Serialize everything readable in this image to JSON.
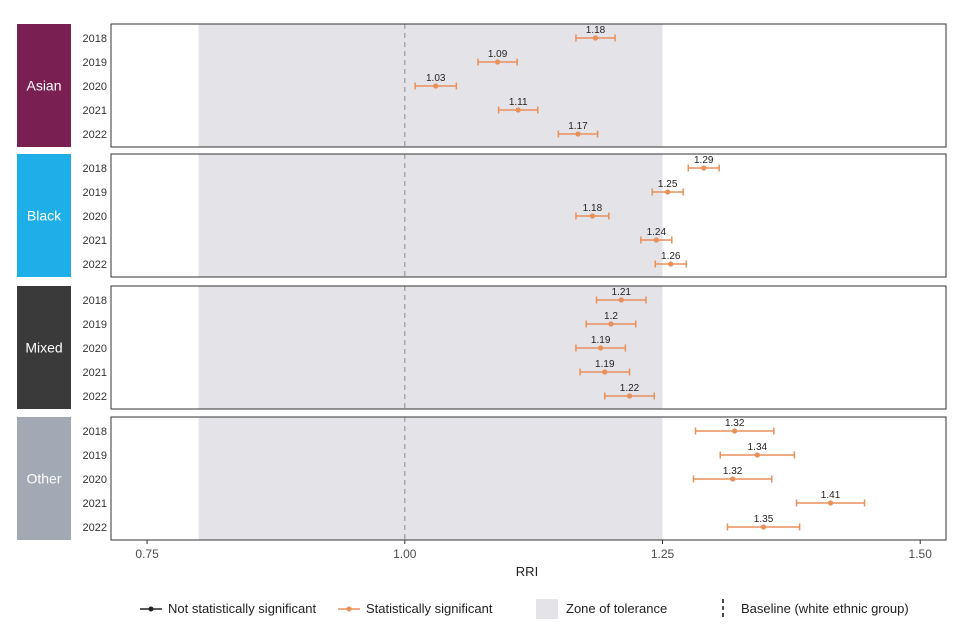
{
  "chart_data": {
    "type": "forest-plot",
    "xlabel": "RRI",
    "xlim": [
      0.715,
      1.525
    ],
    "x_ticks": [
      {
        "value": 0.75,
        "label": "0.75"
      },
      {
        "value": 1.0,
        "label": "1.00"
      },
      {
        "value": 1.25,
        "label": "1.25"
      },
      {
        "value": 1.5,
        "label": "1.50"
      }
    ],
    "baseline": 1.0,
    "tolerance_zone": [
      0.8,
      1.25
    ],
    "colors": {
      "significant": "#e8905a",
      "not_significant": "#222222",
      "tolerance_zone": "#e4e3e8",
      "baseline": "#9a9a9a"
    },
    "groups": [
      {
        "name": "Asian",
        "color": "#7a1f52",
        "points": [
          {
            "year": "2018",
            "value": 1.185,
            "low": 1.166,
            "high": 1.204,
            "label": "1.18",
            "significant": true
          },
          {
            "year": "2019",
            "value": 1.09,
            "low": 1.071,
            "high": 1.109,
            "label": "1.09",
            "significant": true
          },
          {
            "year": "2020",
            "value": 1.03,
            "low": 1.01,
            "high": 1.05,
            "label": "1.03",
            "significant": true
          },
          {
            "year": "2021",
            "value": 1.11,
            "low": 1.091,
            "high": 1.129,
            "label": "1.11",
            "significant": true
          },
          {
            "year": "2022",
            "value": 1.168,
            "low": 1.149,
            "high": 1.187,
            "label": "1.17",
            "significant": true
          }
        ]
      },
      {
        "name": "Black",
        "color": "#1eaee8",
        "points": [
          {
            "year": "2018",
            "value": 1.29,
            "low": 1.275,
            "high": 1.305,
            "label": "1.29",
            "significant": true
          },
          {
            "year": "2019",
            "value": 1.255,
            "low": 1.24,
            "high": 1.27,
            "label": "1.25",
            "significant": true
          },
          {
            "year": "2020",
            "value": 1.182,
            "low": 1.166,
            "high": 1.198,
            "label": "1.18",
            "significant": true
          },
          {
            "year": "2021",
            "value": 1.244,
            "low": 1.229,
            "high": 1.259,
            "label": "1.24",
            "significant": true
          },
          {
            "year": "2022",
            "value": 1.258,
            "low": 1.243,
            "high": 1.273,
            "label": "1.26",
            "significant": true
          }
        ]
      },
      {
        "name": "Mixed",
        "color": "#3a3a3a",
        "points": [
          {
            "year": "2018",
            "value": 1.21,
            "low": 1.186,
            "high": 1.234,
            "label": "1.21",
            "significant": true
          },
          {
            "year": "2019",
            "value": 1.2,
            "low": 1.176,
            "high": 1.224,
            "label": "1.2",
            "significant": true
          },
          {
            "year": "2020",
            "value": 1.19,
            "low": 1.166,
            "high": 1.214,
            "label": "1.19",
            "significant": true
          },
          {
            "year": "2021",
            "value": 1.194,
            "low": 1.17,
            "high": 1.218,
            "label": "1.19",
            "significant": true
          },
          {
            "year": "2022",
            "value": 1.218,
            "low": 1.194,
            "high": 1.242,
            "label": "1.22",
            "significant": true
          }
        ]
      },
      {
        "name": "Other",
        "color": "#a3a8b5",
        "points": [
          {
            "year": "2018",
            "value": 1.32,
            "low": 1.282,
            "high": 1.358,
            "label": "1.32",
            "significant": true
          },
          {
            "year": "2019",
            "value": 1.342,
            "low": 1.306,
            "high": 1.378,
            "label": "1.34",
            "significant": true
          },
          {
            "year": "2020",
            "value": 1.318,
            "low": 1.28,
            "high": 1.356,
            "label": "1.32",
            "significant": true
          },
          {
            "year": "2021",
            "value": 1.413,
            "low": 1.38,
            "high": 1.446,
            "label": "1.41",
            "significant": true
          },
          {
            "year": "2022",
            "value": 1.348,
            "low": 1.313,
            "high": 1.383,
            "label": "1.35",
            "significant": true
          }
        ]
      }
    ],
    "legend": {
      "not_significant": "Not statistically significant",
      "significant": "Statistically significant",
      "zone": "Zone of tolerance",
      "baseline": "Baseline (white ethnic group)"
    }
  }
}
